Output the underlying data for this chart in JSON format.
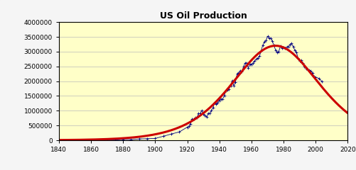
{
  "title": "US Oil Production",
  "xlim": [
    1840,
    2020
  ],
  "ylim": [
    0,
    4000000
  ],
  "yticks": [
    0,
    500000,
    1000000,
    1500000,
    2000000,
    2500000,
    3000000,
    3500000,
    4000000
  ],
  "xticks": [
    1840,
    1860,
    1880,
    1900,
    1920,
    1940,
    1960,
    1980,
    2000,
    2020
  ],
  "bg_color": "#ffffc8",
  "outer_bg": "#f5f5f5",
  "scatter_color": "#000080",
  "curve_color": "#cc0000",
  "title_fontsize": 9,
  "actual_data": [
    [
      1859,
      2000
    ],
    [
      1860,
      500
    ],
    [
      1861,
      2000
    ],
    [
      1862,
      3000
    ],
    [
      1863,
      2600
    ],
    [
      1864,
      2100
    ],
    [
      1865,
      2500
    ],
    [
      1870,
      5200
    ],
    [
      1875,
      8800
    ],
    [
      1880,
      26000
    ],
    [
      1885,
      21000
    ],
    [
      1890,
      45000
    ],
    [
      1895,
      52000
    ],
    [
      1900,
      63000
    ],
    [
      1905,
      134000
    ],
    [
      1910,
      210000
    ],
    [
      1915,
      281000
    ],
    [
      1920,
      443000
    ],
    [
      1921,
      472000
    ],
    [
      1922,
      558000
    ],
    [
      1923,
      723000
    ],
    [
      1924,
      714000
    ],
    [
      1925,
      764000
    ],
    [
      1926,
      771000
    ],
    [
      1927,
      901000
    ],
    [
      1928,
      901000
    ],
    [
      1929,
      1007000
    ],
    [
      1930,
      898000
    ],
    [
      1931,
      851000
    ],
    [
      1932,
      785000
    ],
    [
      1933,
      906000
    ],
    [
      1934,
      908000
    ],
    [
      1935,
      996000
    ],
    [
      1936,
      1100000
    ],
    [
      1937,
      1280000
    ],
    [
      1938,
      1214000
    ],
    [
      1939,
      1265000
    ],
    [
      1940,
      1353000
    ],
    [
      1941,
      1402000
    ],
    [
      1942,
      1386000
    ],
    [
      1943,
      1505000
    ],
    [
      1944,
      1678000
    ],
    [
      1945,
      1714000
    ],
    [
      1946,
      1734000
    ],
    [
      1947,
      1857000
    ],
    [
      1948,
      2020000
    ],
    [
      1949,
      1842000
    ],
    [
      1950,
      1973000
    ],
    [
      1951,
      2248000
    ],
    [
      1952,
      2289000
    ],
    [
      1953,
      2357000
    ],
    [
      1954,
      2315000
    ],
    [
      1955,
      2484000
    ],
    [
      1956,
      2617000
    ],
    [
      1957,
      2617000
    ],
    [
      1958,
      2449000
    ],
    [
      1959,
      2574000
    ],
    [
      1960,
      2575000
    ],
    [
      1961,
      2621000
    ],
    [
      1962,
      2676000
    ],
    [
      1963,
      2753000
    ],
    [
      1964,
      2787000
    ],
    [
      1965,
      2849000
    ],
    [
      1966,
      3028000
    ],
    [
      1967,
      3216000
    ],
    [
      1968,
      3329000
    ],
    [
      1969,
      3372000
    ],
    [
      1970,
      3517000
    ],
    [
      1971,
      3454000
    ],
    [
      1972,
      3455000
    ],
    [
      1973,
      3361000
    ],
    [
      1974,
      3203000
    ],
    [
      1975,
      3057000
    ],
    [
      1976,
      2976000
    ],
    [
      1977,
      3009000
    ],
    [
      1978,
      3178000
    ],
    [
      1979,
      3121000
    ],
    [
      1980,
      3146000
    ],
    [
      1981,
      3129000
    ],
    [
      1982,
      3157000
    ],
    [
      1983,
      3171000
    ],
    [
      1984,
      3249000
    ],
    [
      1985,
      3274000
    ],
    [
      1986,
      3168000
    ],
    [
      1987,
      3047000
    ],
    [
      1988,
      2979000
    ],
    [
      1989,
      2778000
    ],
    [
      1990,
      2685000
    ],
    [
      1991,
      2707000
    ],
    [
      1992,
      2625000
    ],
    [
      1993,
      2499000
    ],
    [
      1994,
      2431000
    ],
    [
      1995,
      2394000
    ],
    [
      1996,
      2366000
    ],
    [
      1997,
      2354000
    ],
    [
      1998,
      2282000
    ],
    [
      1999,
      2147000
    ],
    [
      2000,
      2131000
    ],
    [
      2002,
      2097000
    ],
    [
      2004,
      1983000
    ]
  ],
  "hubbert_t_peak": 1975,
  "hubbert_peak_val": 3200000,
  "hubbert_k": 0.055
}
